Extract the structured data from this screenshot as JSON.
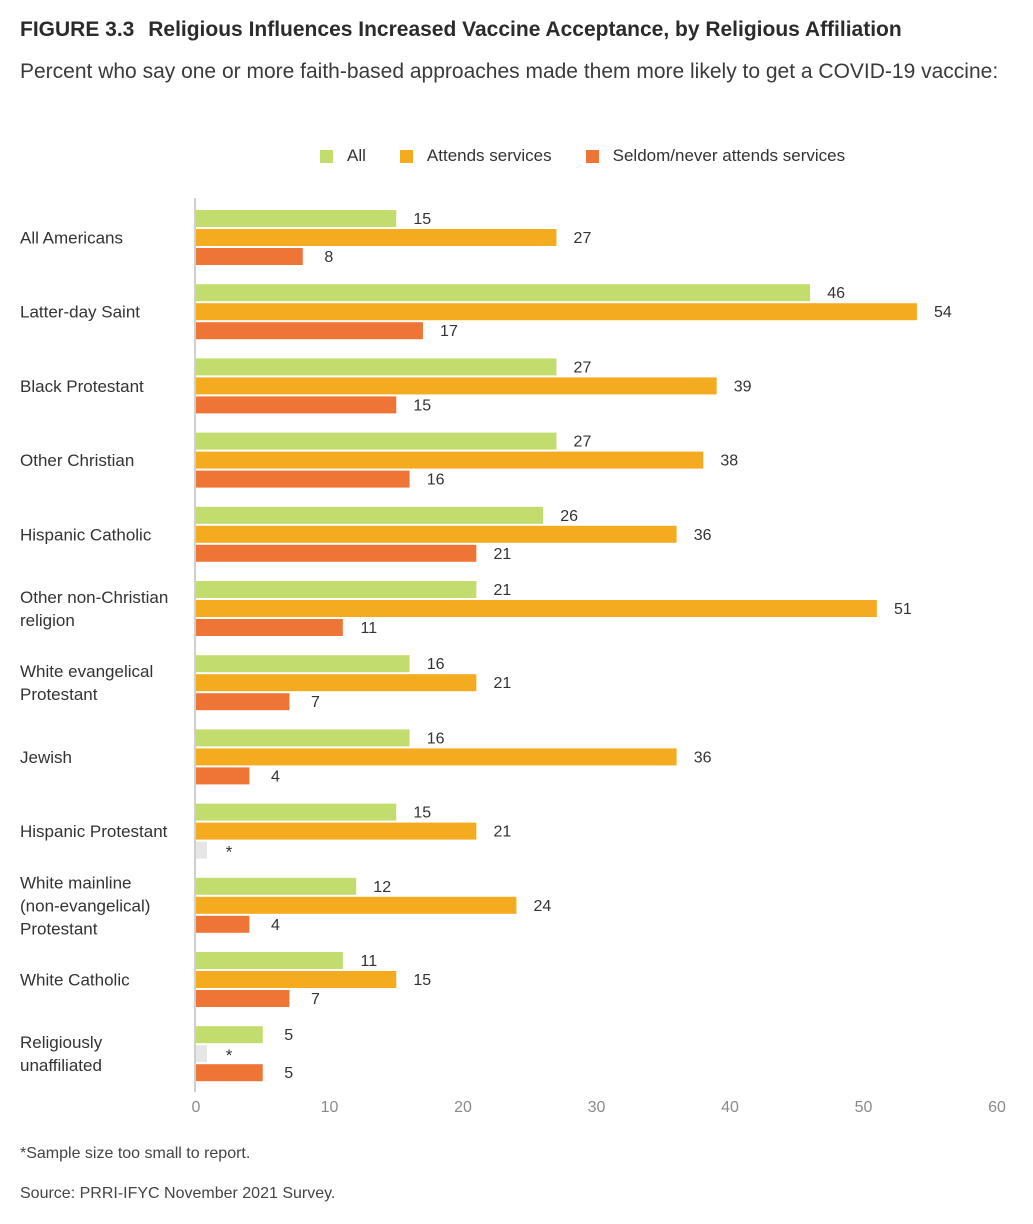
{
  "header": {
    "figure_label": "FIGURE 3.3",
    "title": "Religious Influences Increased Vaccine Acceptance, by Religious Affiliation",
    "subtitle": "Percent who say one or more faith-based approaches made them more likely to get a COVID-19 vaccine:"
  },
  "legend": [
    {
      "label": "All",
      "color": "#c2dc6e"
    },
    {
      "label": "Attends services",
      "color": "#f5ab1f"
    },
    {
      "label": "Seldom/never attends services",
      "color": "#ef7536"
    }
  ],
  "chart_data": {
    "type": "bar",
    "orientation": "horizontal",
    "categories": [
      [
        "All Americans"
      ],
      [
        "Latter-day Saint"
      ],
      [
        "Black Protestant"
      ],
      [
        "Other Christian"
      ],
      [
        "Hispanic Catholic"
      ],
      [
        "Other non-Christian",
        "religion"
      ],
      [
        "White evangelical",
        "Protestant"
      ],
      [
        "Jewish"
      ],
      [
        "Hispanic Protestant"
      ],
      [
        "White mainline",
        "(non-evangelical)",
        "Protestant"
      ],
      [
        "White Catholic"
      ],
      [
        "Religiously",
        "unaffiliated"
      ]
    ],
    "series": [
      {
        "name": "All",
        "color": "#c2dc6e",
        "values": [
          15,
          46,
          27,
          27,
          26,
          21,
          16,
          16,
          15,
          12,
          11,
          5
        ]
      },
      {
        "name": "Attends services",
        "color": "#f5ab1f",
        "values": [
          27,
          54,
          39,
          38,
          36,
          51,
          21,
          36,
          21,
          24,
          15,
          null
        ]
      },
      {
        "name": "Seldom/never attends services",
        "color": "#ef7536",
        "values": [
          8,
          17,
          15,
          16,
          21,
          11,
          7,
          4,
          null,
          4,
          7,
          5
        ]
      }
    ],
    "missing_marker": "*",
    "missing_color": "#e6e6e6",
    "xlim": [
      0,
      60
    ],
    "xticks": [
      "0",
      "10",
      "20",
      "30",
      "40",
      "50",
      "60"
    ]
  },
  "footnote": "*Sample size too small to report.",
  "source": "Source: PRRI-IFYC November 2021 Survey."
}
